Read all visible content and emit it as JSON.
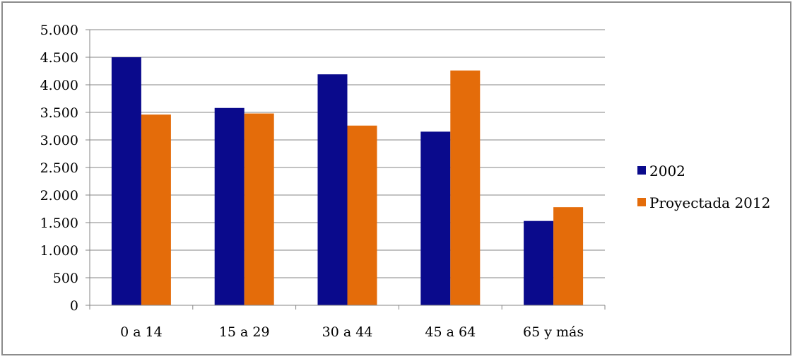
{
  "chart_data": {
    "type": "bar",
    "categories": [
      "0 a 14",
      "15 a 29",
      "30 a 44",
      "45 a 64",
      "65 y más"
    ],
    "series": [
      {
        "name": "2002",
        "values": [
          4500,
          3580,
          4190,
          3150,
          1530
        ],
        "color": "#0a0a8c"
      },
      {
        "name": "Proyectada 2012",
        "values": [
          3460,
          3480,
          3260,
          4260,
          1780
        ],
        "color": "#e46c0a"
      }
    ],
    "ylim": [
      0,
      5000
    ],
    "yticks": [
      0,
      500,
      1000,
      1500,
      2000,
      2500,
      3000,
      3500,
      4000,
      4500,
      5000
    ],
    "ytick_labels": [
      "0",
      "500",
      "1.000",
      "1.500",
      "2.000",
      "2.500",
      "3.000",
      "3.500",
      "4.000",
      "4.500",
      "5.000"
    ],
    "title": "",
    "xlabel": "",
    "ylabel": "",
    "grid": true,
    "legend_position": "right",
    "gridline_color": "#868686"
  }
}
